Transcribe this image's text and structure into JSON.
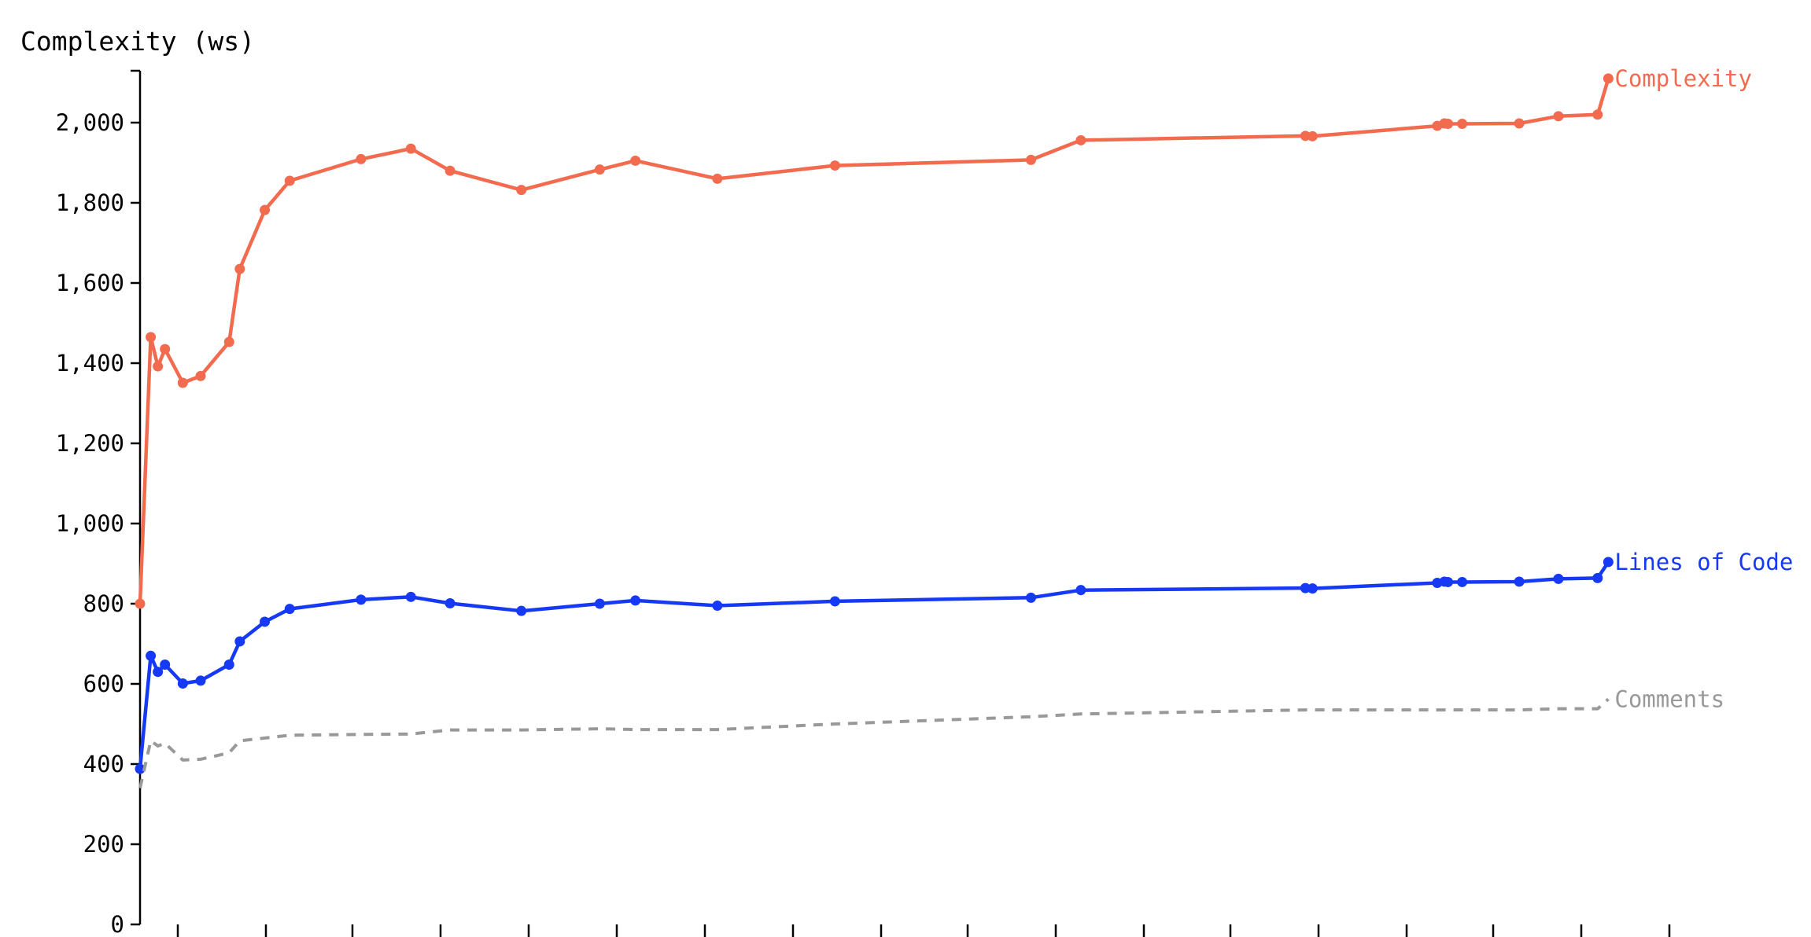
{
  "chart_data": {
    "type": "line",
    "ylabel": "Complexity (ws)",
    "ylim": [
      0,
      2130
    ],
    "yticks": [
      0,
      200,
      400,
      600,
      800,
      1000,
      1200,
      1400,
      1600,
      1800,
      2000
    ],
    "ytick_labels": [
      "0",
      "200",
      "400",
      "600",
      "800",
      "1,000",
      "1,200",
      "1,400",
      "1,600",
      "1,800",
      "2,000"
    ],
    "x_ticks_labeled": false,
    "grid": false,
    "series_labels_at_line_end": true,
    "series": [
      {
        "name": "Complexity",
        "color": "#f26b4f",
        "style": "solid",
        "markers": true,
        "x": [
          0,
          3,
          5,
          7,
          12,
          17,
          25,
          28,
          35,
          42,
          62,
          76,
          87,
          107,
          129,
          139,
          162,
          195,
          250,
          264,
          327,
          329,
          364,
          366,
          367,
          371,
          387,
          398,
          409,
          412
        ],
        "values": [
          800,
          1465,
          1392,
          1435,
          1351,
          1368,
          1453,
          1635,
          1782,
          1855,
          1909,
          1935,
          1880,
          1832,
          1883,
          1905,
          1860,
          1893,
          1907,
          1956,
          1967,
          1966,
          1992,
          1998,
          1997,
          1997,
          1998,
          2016,
          2020,
          2110
        ]
      },
      {
        "name": "Lines of Code",
        "color": "#1539f5",
        "style": "solid",
        "markers": true,
        "x": [
          0,
          3,
          5,
          7,
          12,
          17,
          25,
          28,
          35,
          42,
          62,
          76,
          87,
          107,
          129,
          139,
          162,
          195,
          250,
          264,
          327,
          329,
          364,
          366,
          367,
          371,
          387,
          398,
          409,
          412
        ],
        "values": [
          388,
          670,
          630,
          648,
          601,
          608,
          648,
          706,
          755,
          787,
          810,
          817,
          801,
          782,
          800,
          808,
          795,
          806,
          815,
          834,
          839,
          838,
          852,
          855,
          854,
          854,
          855,
          862,
          864,
          904
        ]
      },
      {
        "name": "Comments",
        "color": "#999999",
        "style": "dashed",
        "markers": false,
        "x": [
          0,
          3,
          5,
          7,
          12,
          17,
          25,
          28,
          35,
          42,
          62,
          76,
          87,
          107,
          129,
          139,
          162,
          195,
          250,
          264,
          327,
          329,
          364,
          366,
          367,
          371,
          387,
          398,
          409,
          412
        ],
        "values": [
          340,
          458,
          445,
          452,
          410,
          412,
          428,
          458,
          465,
          472,
          474,
          475,
          485,
          485,
          488,
          486,
          486,
          500,
          518,
          525,
          535,
          535,
          535,
          535,
          535,
          535,
          535,
          538,
          538,
          562
        ]
      }
    ]
  }
}
